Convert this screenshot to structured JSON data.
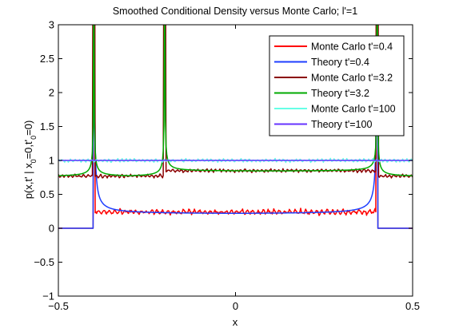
{
  "chart_data": {
    "type": "line",
    "title": "Smoothed Conditional Density versus Monte Carlo;  l'=1",
    "xlabel": "x",
    "ylabel": "p(x,t' | x0=0,t'0=0)",
    "xlim": [
      -0.5,
      0.5
    ],
    "ylim": [
      -1,
      3
    ],
    "xticks": [
      -0.5,
      0,
      0.5
    ],
    "xtick_labels": [
      "−0.5",
      "0",
      "0.5"
    ],
    "yticks": [
      -1,
      -0.5,
      0,
      0.5,
      1,
      1.5,
      2,
      2.5,
      3
    ],
    "ytick_labels": [
      "−1",
      "−0.5",
      "0",
      "0.5",
      "1",
      "1.5",
      "2",
      "2.5",
      "3"
    ],
    "grid": false,
    "legend_position": "top-right",
    "series": [
      {
        "name": "Monte Carlo t'=0.4",
        "color": "#ff0000",
        "kind": "monte_carlo",
        "support": [
          -0.4,
          0.4
        ],
        "mean": 0.24,
        "noise_amplitude": 0.04,
        "noise_period": 0.015,
        "edge_spike": 2.1,
        "outside": 0.0
      },
      {
        "name": "Theory t'=0.4",
        "color": "#1f3fff",
        "kind": "theory",
        "support": [
          -0.4,
          0.4
        ],
        "mean": 0.21,
        "edge_spike": 3.2,
        "outside": 0.0
      },
      {
        "name": "Monte Carlo t'=3.2",
        "color": "#8b0000",
        "kind": "monte_carlo",
        "support": [
          -0.5,
          0.5
        ],
        "mean": 0.77,
        "inner_support": [
          -0.2,
          0.4
        ],
        "inner_mean": 0.85,
        "noise_amplitude": 0.025,
        "edge_spike": 3.1
      },
      {
        "name": "Theory t'=3.2",
        "color": "#00aa00",
        "kind": "theory",
        "support": [
          -0.5,
          0.5
        ],
        "mean": 0.76,
        "inner_support": [
          -0.2,
          0.4
        ],
        "inner_mean": 0.84,
        "edge_spike": 3.1
      },
      {
        "name": "Monte Carlo t'=100",
        "color": "#66ffe6",
        "kind": "monte_carlo",
        "support": [
          -0.5,
          0.5
        ],
        "mean": 1.0,
        "noise_amplitude": 0.025
      },
      {
        "name": "Theory t'=100",
        "color": "#6633ff",
        "kind": "theory",
        "support": [
          -0.5,
          0.5
        ],
        "mean": 1.0
      }
    ]
  }
}
